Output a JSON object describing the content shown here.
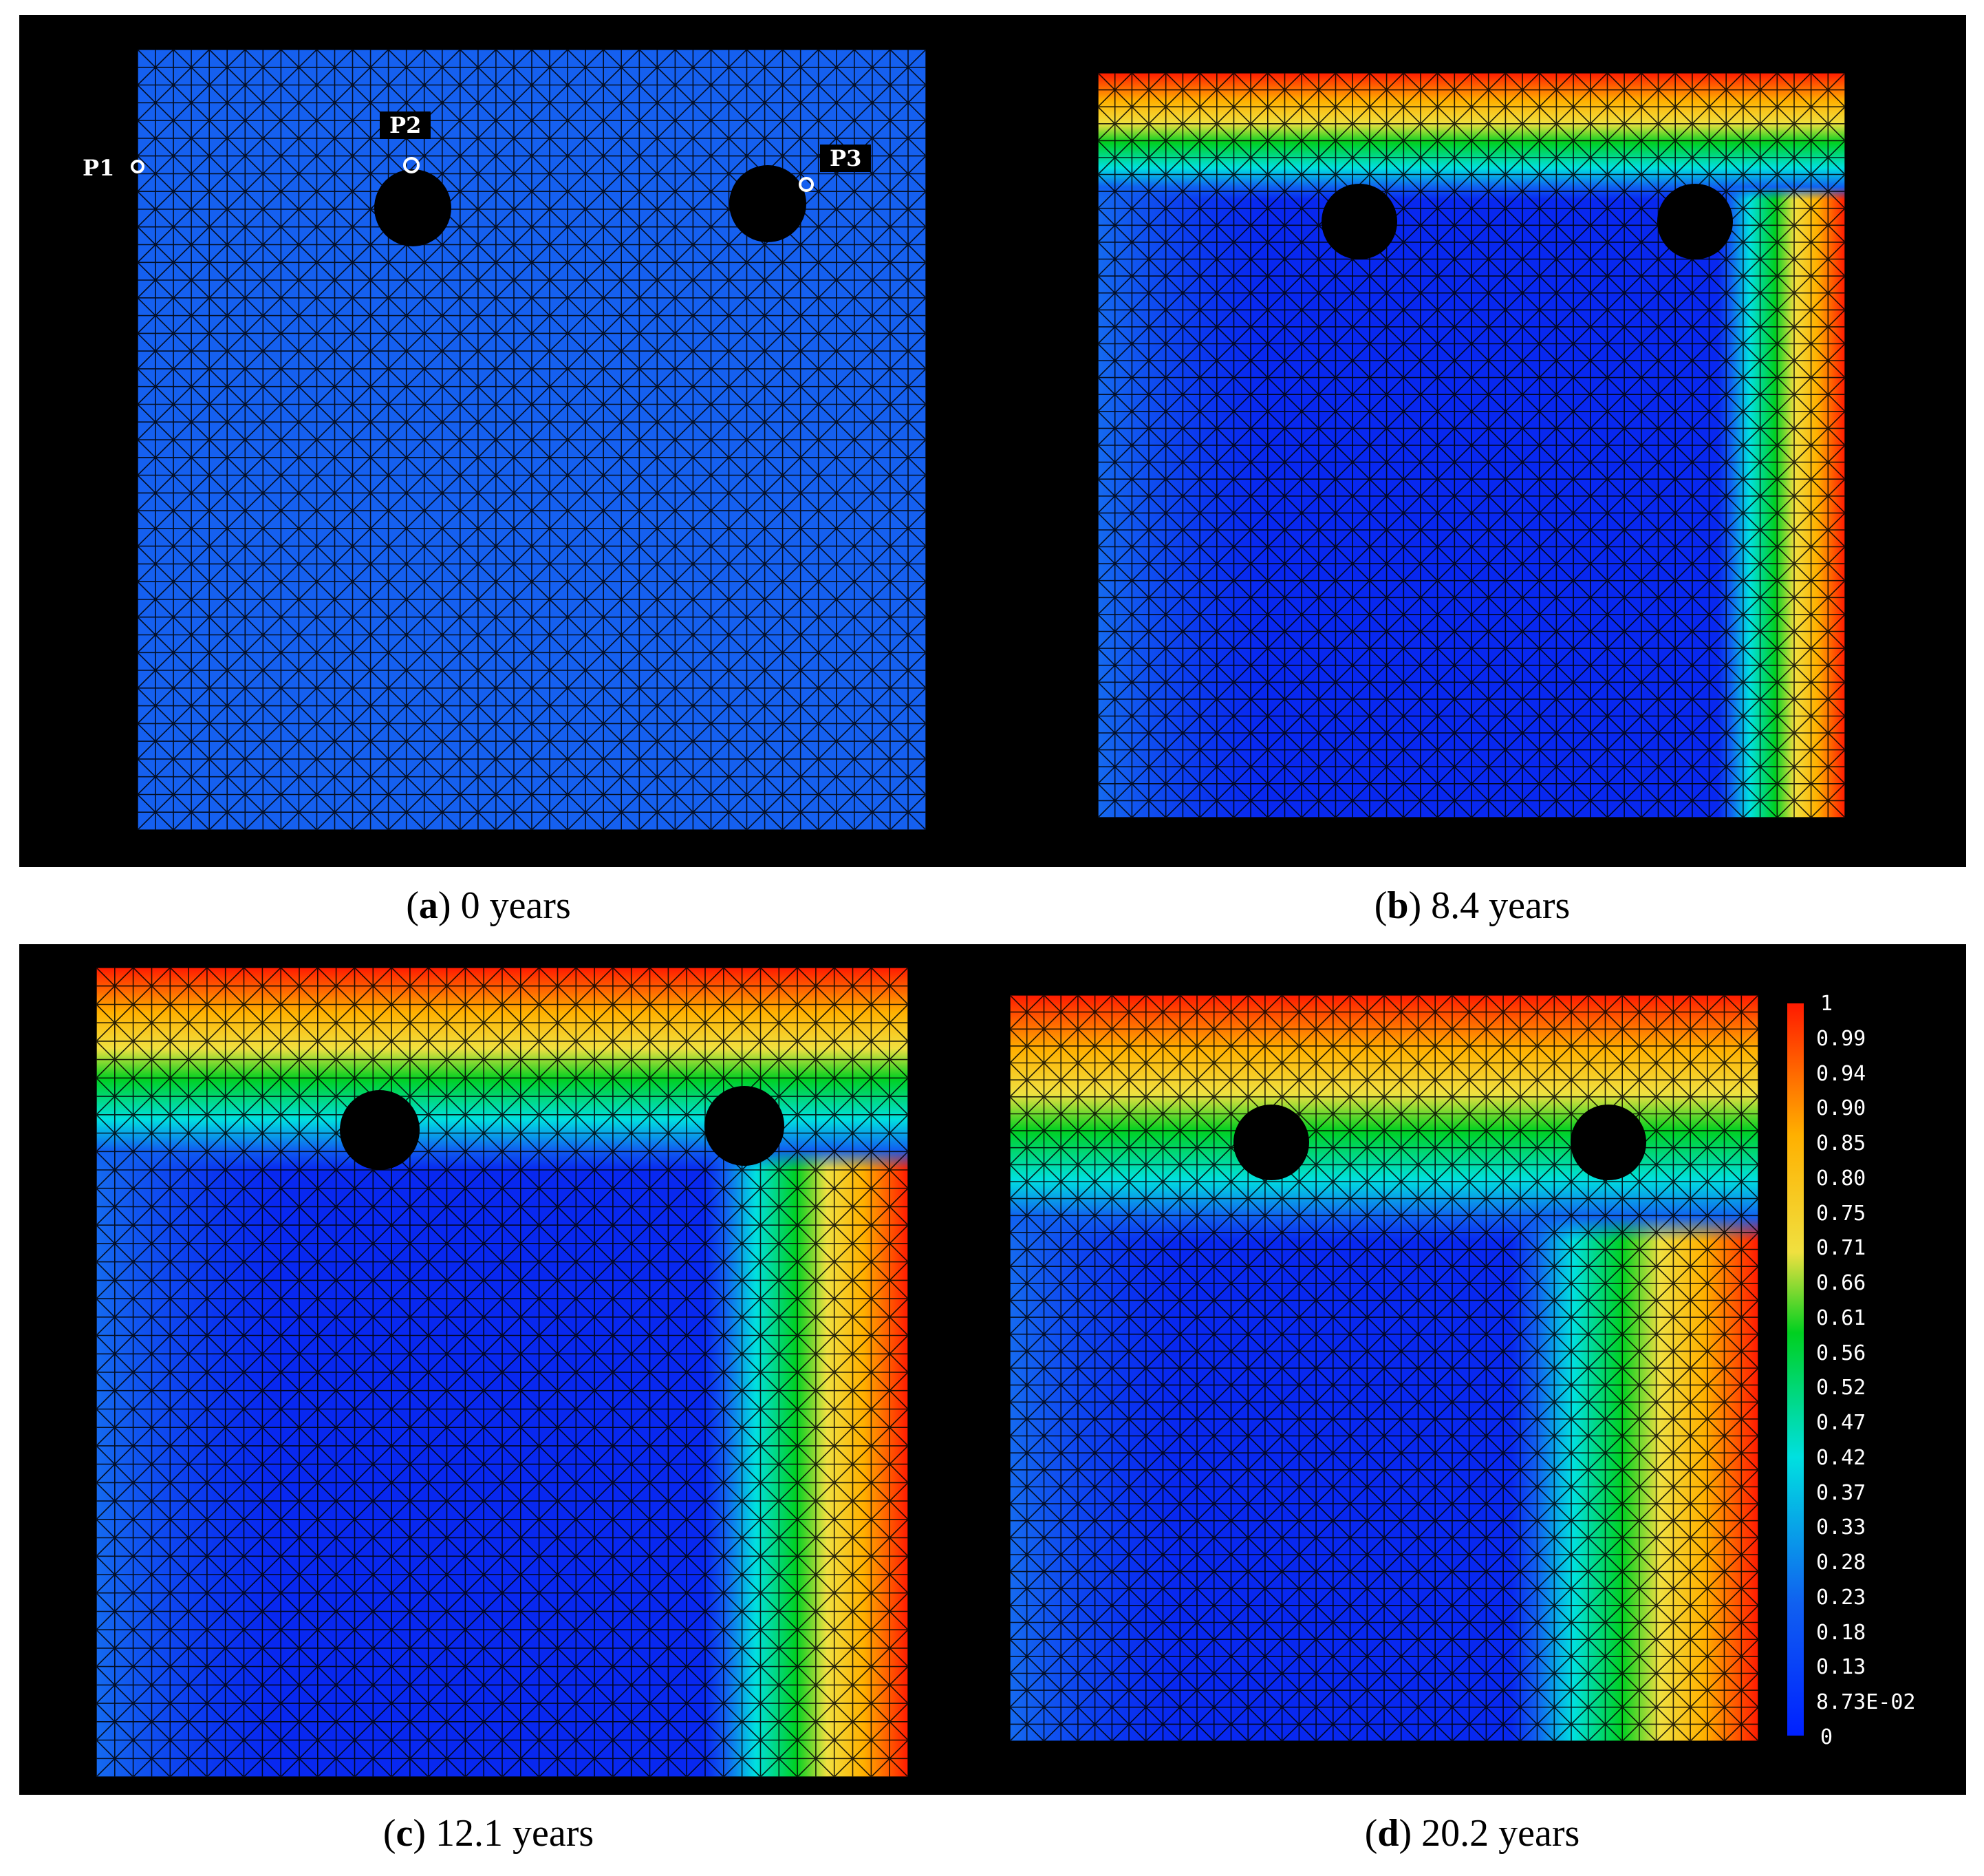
{
  "panels": [
    {
      "letter": "a",
      "time": "0 years",
      "stage": 0
    },
    {
      "letter": "b",
      "time": "8.4 years",
      "stage": 1
    },
    {
      "letter": "c",
      "time": "12.1 years",
      "stage": 2
    },
    {
      "letter": "d",
      "time": "20.2 years",
      "stage": 3
    }
  ],
  "probes": [
    "P1",
    "P2",
    "P3"
  ],
  "colorbar": {
    "ticks": [
      "1",
      "0.99",
      "0.94",
      "0.90",
      "0.85",
      "0.80",
      "0.75",
      "0.71",
      "0.66",
      "0.61",
      "0.56",
      "0.52",
      "0.47",
      "0.42",
      "0.37",
      "0.33",
      "0.28",
      "0.23",
      "0.18",
      "0.13",
      "8.73E-02",
      "0"
    ],
    "colors": [
      "#ff1a00",
      "#ffb000",
      "#f0e040",
      "#00d020",
      "#00e0e0",
      "#1060f0",
      "#0020ff"
    ]
  },
  "field_colors": {
    "initial": "#1560f0",
    "mesh": "#000000"
  }
}
